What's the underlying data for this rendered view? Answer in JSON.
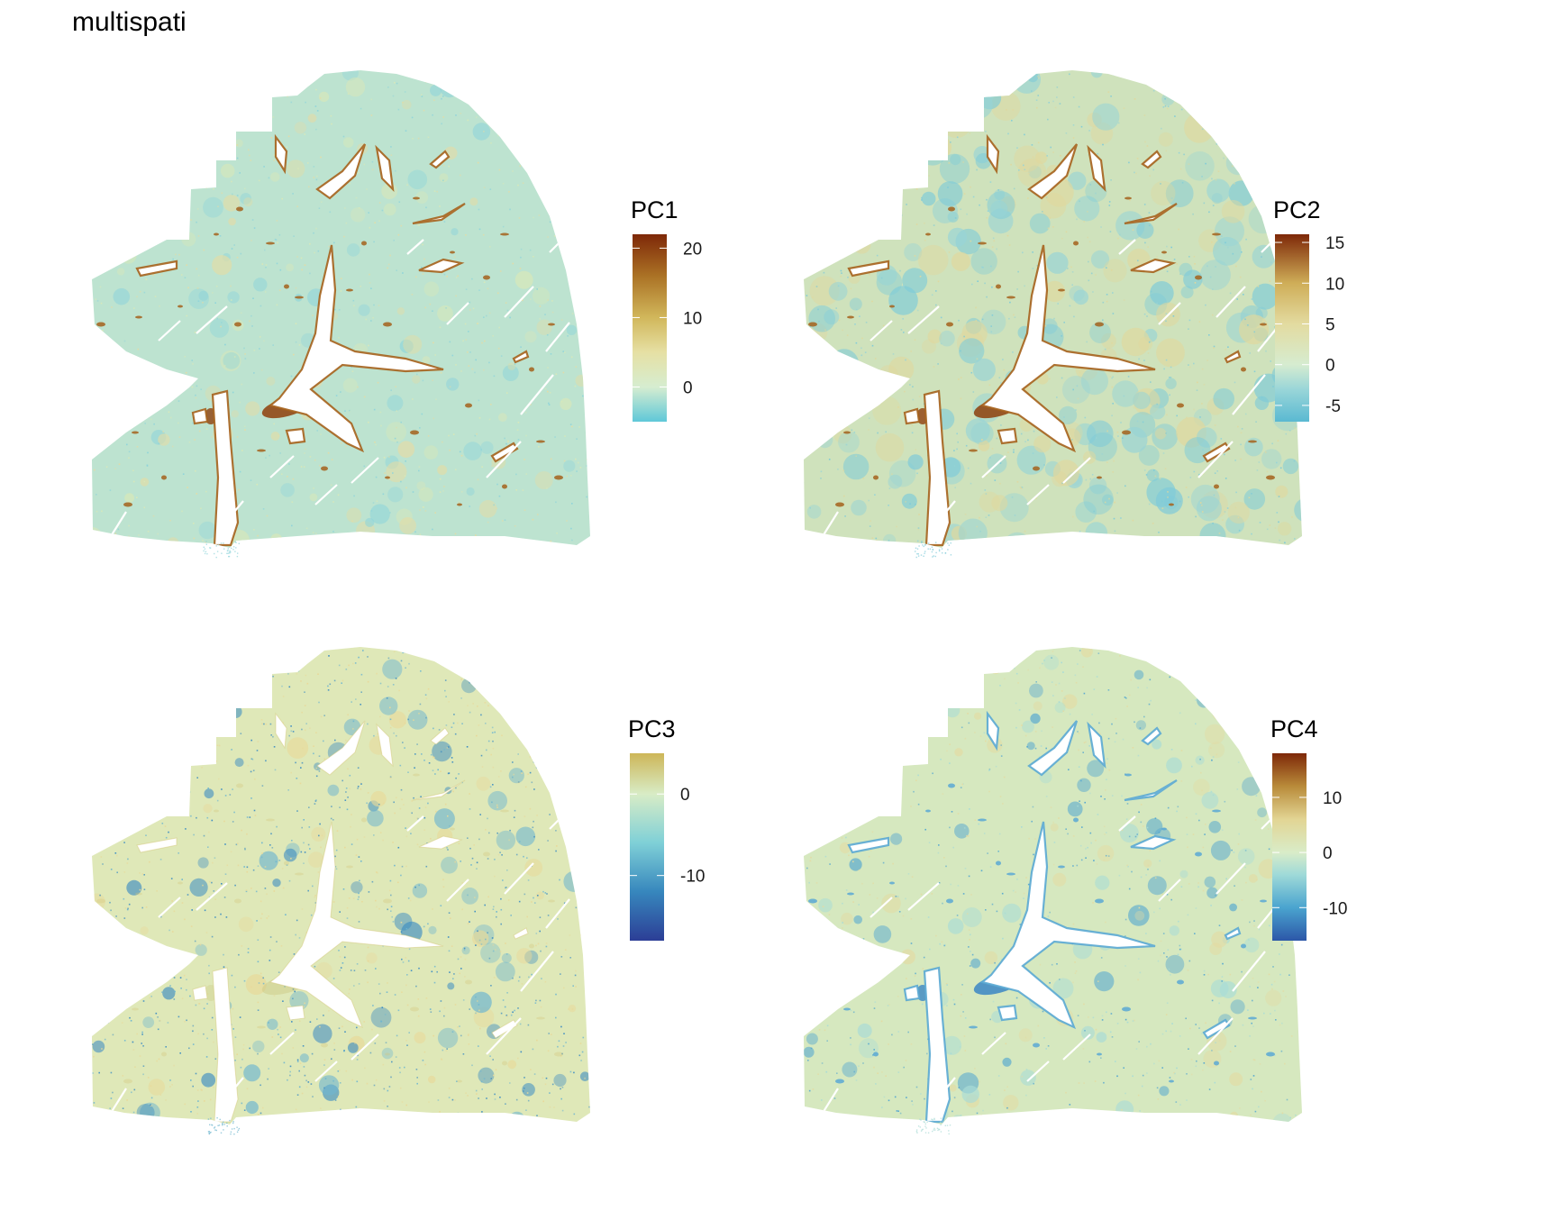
{
  "title": "multispati",
  "chart_data": [
    {
      "type": "heatmap",
      "legend_title": "PC1",
      "color_range": [
        -5,
        22
      ],
      "legend_ticks": [
        {
          "value": 20,
          "label": "20"
        },
        {
          "value": 10,
          "label": "10"
        },
        {
          "value": 0,
          "label": "0"
        }
      ],
      "gradient_stops": [
        {
          "value": -5,
          "color": "#5fc8d8"
        },
        {
          "value": 0,
          "color": "#d6edd0"
        },
        {
          "value": 5,
          "color": "#e6e0a4"
        },
        {
          "value": 10,
          "color": "#d1b75b"
        },
        {
          "value": 16,
          "color": "#ab7225"
        },
        {
          "value": 22,
          "color": "#7e2808"
        }
      ],
      "texture": {
        "base": "#bde3d0",
        "speckle": [
          "#8fd4da",
          "#d9e8b8",
          "#e3dca6"
        ],
        "vessel_rim": "#a5621c",
        "hilum": "#8f3f0c"
      },
      "legend_position": "right"
    },
    {
      "type": "heatmap",
      "legend_title": "PC2",
      "color_range": [
        -7,
        16
      ],
      "legend_ticks": [
        {
          "value": 15,
          "label": "15"
        },
        {
          "value": 10,
          "label": "10"
        },
        {
          "value": 5,
          "label": "5"
        },
        {
          "value": 0,
          "label": "0"
        },
        {
          "value": -5,
          "label": "-5"
        }
      ],
      "gradient_stops": [
        {
          "value": -7,
          "color": "#5ab9d2"
        },
        {
          "value": -3,
          "color": "#9ad6d8"
        },
        {
          "value": 0,
          "color": "#d6ecd0"
        },
        {
          "value": 5,
          "color": "#e3dba0"
        },
        {
          "value": 10,
          "color": "#cfae58"
        },
        {
          "value": 16,
          "color": "#7e2808"
        }
      ],
      "texture": {
        "base": "#cfe2bc",
        "speckle": [
          "#7fcbd8",
          "#e0d89e",
          "#98d4d6"
        ],
        "vessel_rim": "#a5621c",
        "hilum": "#8f3f0c"
      },
      "legend_position": "right"
    },
    {
      "type": "heatmap",
      "legend_title": "PC3",
      "color_range": [
        -18,
        5
      ],
      "legend_ticks": [
        {
          "value": 0,
          "label": "0"
        },
        {
          "value": -10,
          "label": "-10"
        }
      ],
      "gradient_stops": [
        {
          "value": -18,
          "color": "#2c3e96"
        },
        {
          "value": -12,
          "color": "#3787bd"
        },
        {
          "value": -6,
          "color": "#7fd0d7"
        },
        {
          "value": 0,
          "color": "#d8ecc6"
        },
        {
          "value": 5,
          "color": "#cdb658"
        }
      ],
      "texture": {
        "base": "#dfe8b8",
        "speckle": [
          "#6fb6cf",
          "#3f8ec2",
          "#e8d99a"
        ],
        "vessel_rim": "#d4c77a",
        "hilum": "#c9c27a"
      },
      "legend_position": "right"
    },
    {
      "type": "heatmap",
      "legend_title": "PC4",
      "color_range": [
        -16,
        18
      ],
      "legend_ticks": [
        {
          "value": 10,
          "label": "10"
        },
        {
          "value": 0,
          "label": "0"
        },
        {
          "value": -10,
          "label": "-10"
        }
      ],
      "gradient_stops": [
        {
          "value": -16,
          "color": "#2c57a8"
        },
        {
          "value": -10,
          "color": "#4aa4cf"
        },
        {
          "value": -4,
          "color": "#9fdad8"
        },
        {
          "value": 0,
          "color": "#d9ecc8"
        },
        {
          "value": 6,
          "color": "#e2d594"
        },
        {
          "value": 12,
          "color": "#b98b3a"
        },
        {
          "value": 18,
          "color": "#7e2808"
        }
      ],
      "texture": {
        "base": "#d6e8bf",
        "speckle": [
          "#a9dcd6",
          "#e3dba3",
          "#57a8d0"
        ],
        "vessel_rim": "#5aa8d3",
        "hilum": "#3b86c4"
      },
      "legend_position": "right"
    }
  ]
}
